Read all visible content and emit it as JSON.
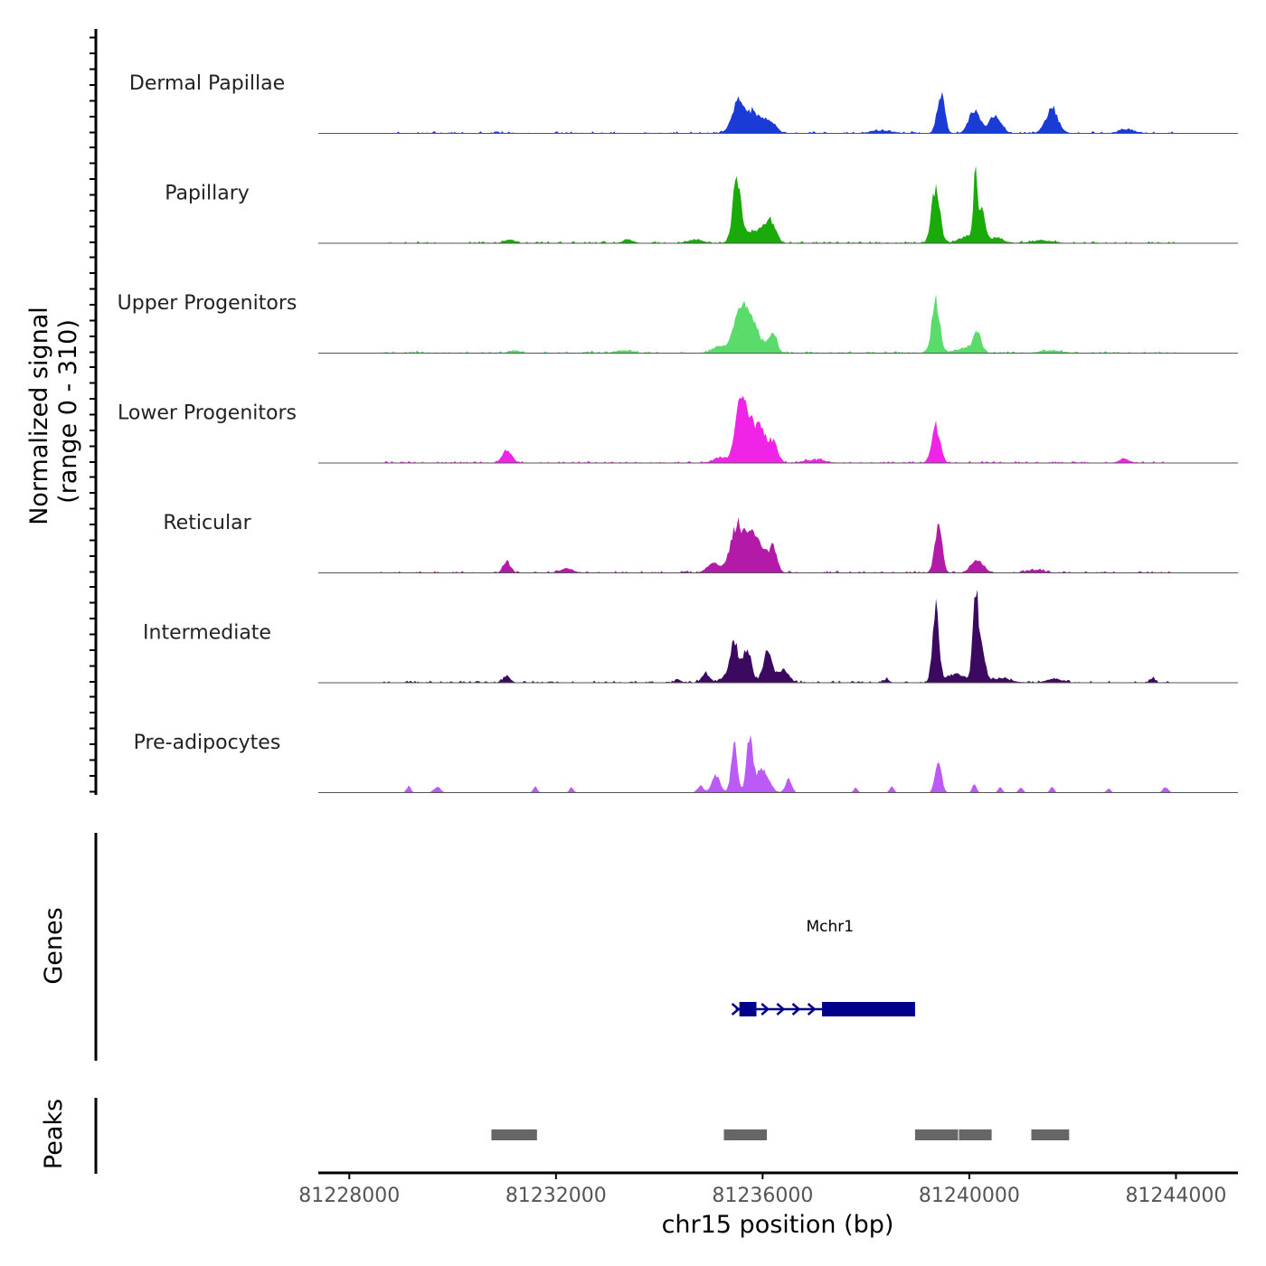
{
  "chart_data": {
    "type": "area",
    "title": "",
    "chromosome": "chr15",
    "xlabel": "chr15 position (bp)",
    "ylabel_line1": "Normalized signal",
    "ylabel_line2": "(range 0 - 310)",
    "xlim": [
      81227400,
      81245200
    ],
    "ylim": [
      0,
      310
    ],
    "x_ticks": [
      81228000,
      81232000,
      81236000,
      81240000,
      81244000
    ],
    "x_tick_labels": [
      "81228000",
      "81232000",
      "81236000",
      "81240000",
      "81244000"
    ],
    "baseline": {
      "start": 81227400,
      "end": 81245200
    },
    "tracks": [
      {
        "name": "Dermal Papillae",
        "color": "#1a3bd6",
        "noise": 0.04,
        "peaks": [
          [
            81235550,
            130,
            95
          ],
          [
            81235850,
            120,
            55
          ],
          [
            81236150,
            110,
            35
          ],
          [
            81239450,
            70,
            120
          ],
          [
            81240100,
            110,
            65
          ],
          [
            81240500,
            110,
            55
          ],
          [
            81241600,
            120,
            70
          ],
          [
            81243050,
            150,
            12
          ],
          [
            81238300,
            200,
            8
          ]
        ]
      },
      {
        "name": "Papillary",
        "color": "#1aab0a",
        "noise": 0.05,
        "peaks": [
          [
            81235500,
            80,
            175
          ],
          [
            81235850,
            200,
            35
          ],
          [
            81236150,
            100,
            60
          ],
          [
            81239350,
            80,
            160
          ],
          [
            81240120,
            40,
            190
          ],
          [
            81240250,
            60,
            90
          ],
          [
            81239950,
            150,
            20
          ],
          [
            81240500,
            150,
            15
          ],
          [
            81233400,
            100,
            10
          ],
          [
            81231100,
            100,
            10
          ],
          [
            81241400,
            200,
            8
          ],
          [
            81234700,
            150,
            10
          ]
        ]
      },
      {
        "name": "Upper Progenitors",
        "color": "#5adb6a",
        "noise": 0.03,
        "peaks": [
          [
            81235550,
            120,
            120
          ],
          [
            81235800,
            150,
            85
          ],
          [
            81236200,
            70,
            65
          ],
          [
            81235150,
            120,
            20
          ],
          [
            81239350,
            75,
            155
          ],
          [
            81240150,
            80,
            55
          ],
          [
            81239900,
            200,
            12
          ],
          [
            81241600,
            200,
            8
          ],
          [
            81233300,
            150,
            8
          ],
          [
            81231200,
            100,
            8
          ]
        ]
      },
      {
        "name": "Lower Progenitors",
        "color": "#ef24e6",
        "noise": 0.04,
        "peaks": [
          [
            81235600,
            110,
            195
          ],
          [
            81235900,
            140,
            110
          ],
          [
            81236200,
            90,
            55
          ],
          [
            81231050,
            90,
            40
          ],
          [
            81239350,
            80,
            110
          ],
          [
            81243000,
            100,
            12
          ],
          [
            81235200,
            150,
            15
          ],
          [
            81237000,
            200,
            8
          ]
        ]
      },
      {
        "name": "Reticular",
        "color": "#b31aa8",
        "noise": 0.04,
        "peaks": [
          [
            81235500,
            130,
            130
          ],
          [
            81235850,
            160,
            110
          ],
          [
            81236200,
            80,
            65
          ],
          [
            81231050,
            70,
            30
          ],
          [
            81239400,
            70,
            140
          ],
          [
            81240150,
            120,
            35
          ],
          [
            81235050,
            120,
            30
          ],
          [
            81232200,
            120,
            12
          ],
          [
            81241300,
            150,
            8
          ]
        ]
      },
      {
        "name": "Intermediate",
        "color": "#3b0a60",
        "noise": 0.04,
        "peaks": [
          [
            81235450,
            80,
            125
          ],
          [
            81235700,
            80,
            100
          ],
          [
            81236100,
            90,
            85
          ],
          [
            81236400,
            100,
            40
          ],
          [
            81234900,
            80,
            25
          ],
          [
            81235250,
            80,
            15
          ],
          [
            81239350,
            60,
            230
          ],
          [
            81240120,
            50,
            270
          ],
          [
            81240250,
            60,
            100
          ],
          [
            81239750,
            200,
            25
          ],
          [
            81240600,
            200,
            12
          ],
          [
            81231050,
            70,
            18
          ],
          [
            81241650,
            150,
            10
          ],
          [
            81243550,
            50,
            12
          ],
          [
            81238400,
            50,
            10
          ],
          [
            81234350,
            50,
            10
          ]
        ]
      },
      {
        "name": "Pre-adipocytes",
        "color": "#bb5af5",
        "noise": 0.0,
        "peaks": [
          [
            81235450,
            60,
            140
          ],
          [
            81235750,
            60,
            160
          ],
          [
            81236000,
            120,
            70
          ],
          [
            81235100,
            80,
            50
          ],
          [
            81236500,
            60,
            40
          ],
          [
            81234800,
            60,
            20
          ],
          [
            81239400,
            60,
            100
          ],
          [
            81240100,
            40,
            25
          ],
          [
            81229150,
            40,
            20
          ],
          [
            81229700,
            60,
            18
          ],
          [
            81231600,
            40,
            18
          ],
          [
            81232300,
            40,
            16
          ],
          [
            81240600,
            40,
            16
          ],
          [
            81241000,
            40,
            16
          ],
          [
            81241600,
            40,
            16
          ],
          [
            81242700,
            40,
            12
          ],
          [
            81243800,
            50,
            16
          ],
          [
            81238500,
            40,
            18
          ],
          [
            81237800,
            40,
            14
          ]
        ]
      }
    ],
    "gene": {
      "name": "Mchr1",
      "start": 81235550,
      "end": 81238950,
      "strand": "+",
      "exons": [
        [
          81235550,
          81235880
        ],
        [
          81237150,
          81238950
        ]
      ],
      "arrows": [
        81236050,
        81236350,
        81236650,
        81236950
      ],
      "color": "#00008b"
    },
    "peaks_track": [
      [
        81230750,
        81231650
      ],
      [
        81235250,
        81236100
      ],
      [
        81238950,
        81239800
      ],
      [
        81239800,
        81240450
      ],
      [
        81241200,
        81241950
      ]
    ],
    "side_labels": {
      "genes": "Genes",
      "peaks": "Peaks"
    }
  }
}
